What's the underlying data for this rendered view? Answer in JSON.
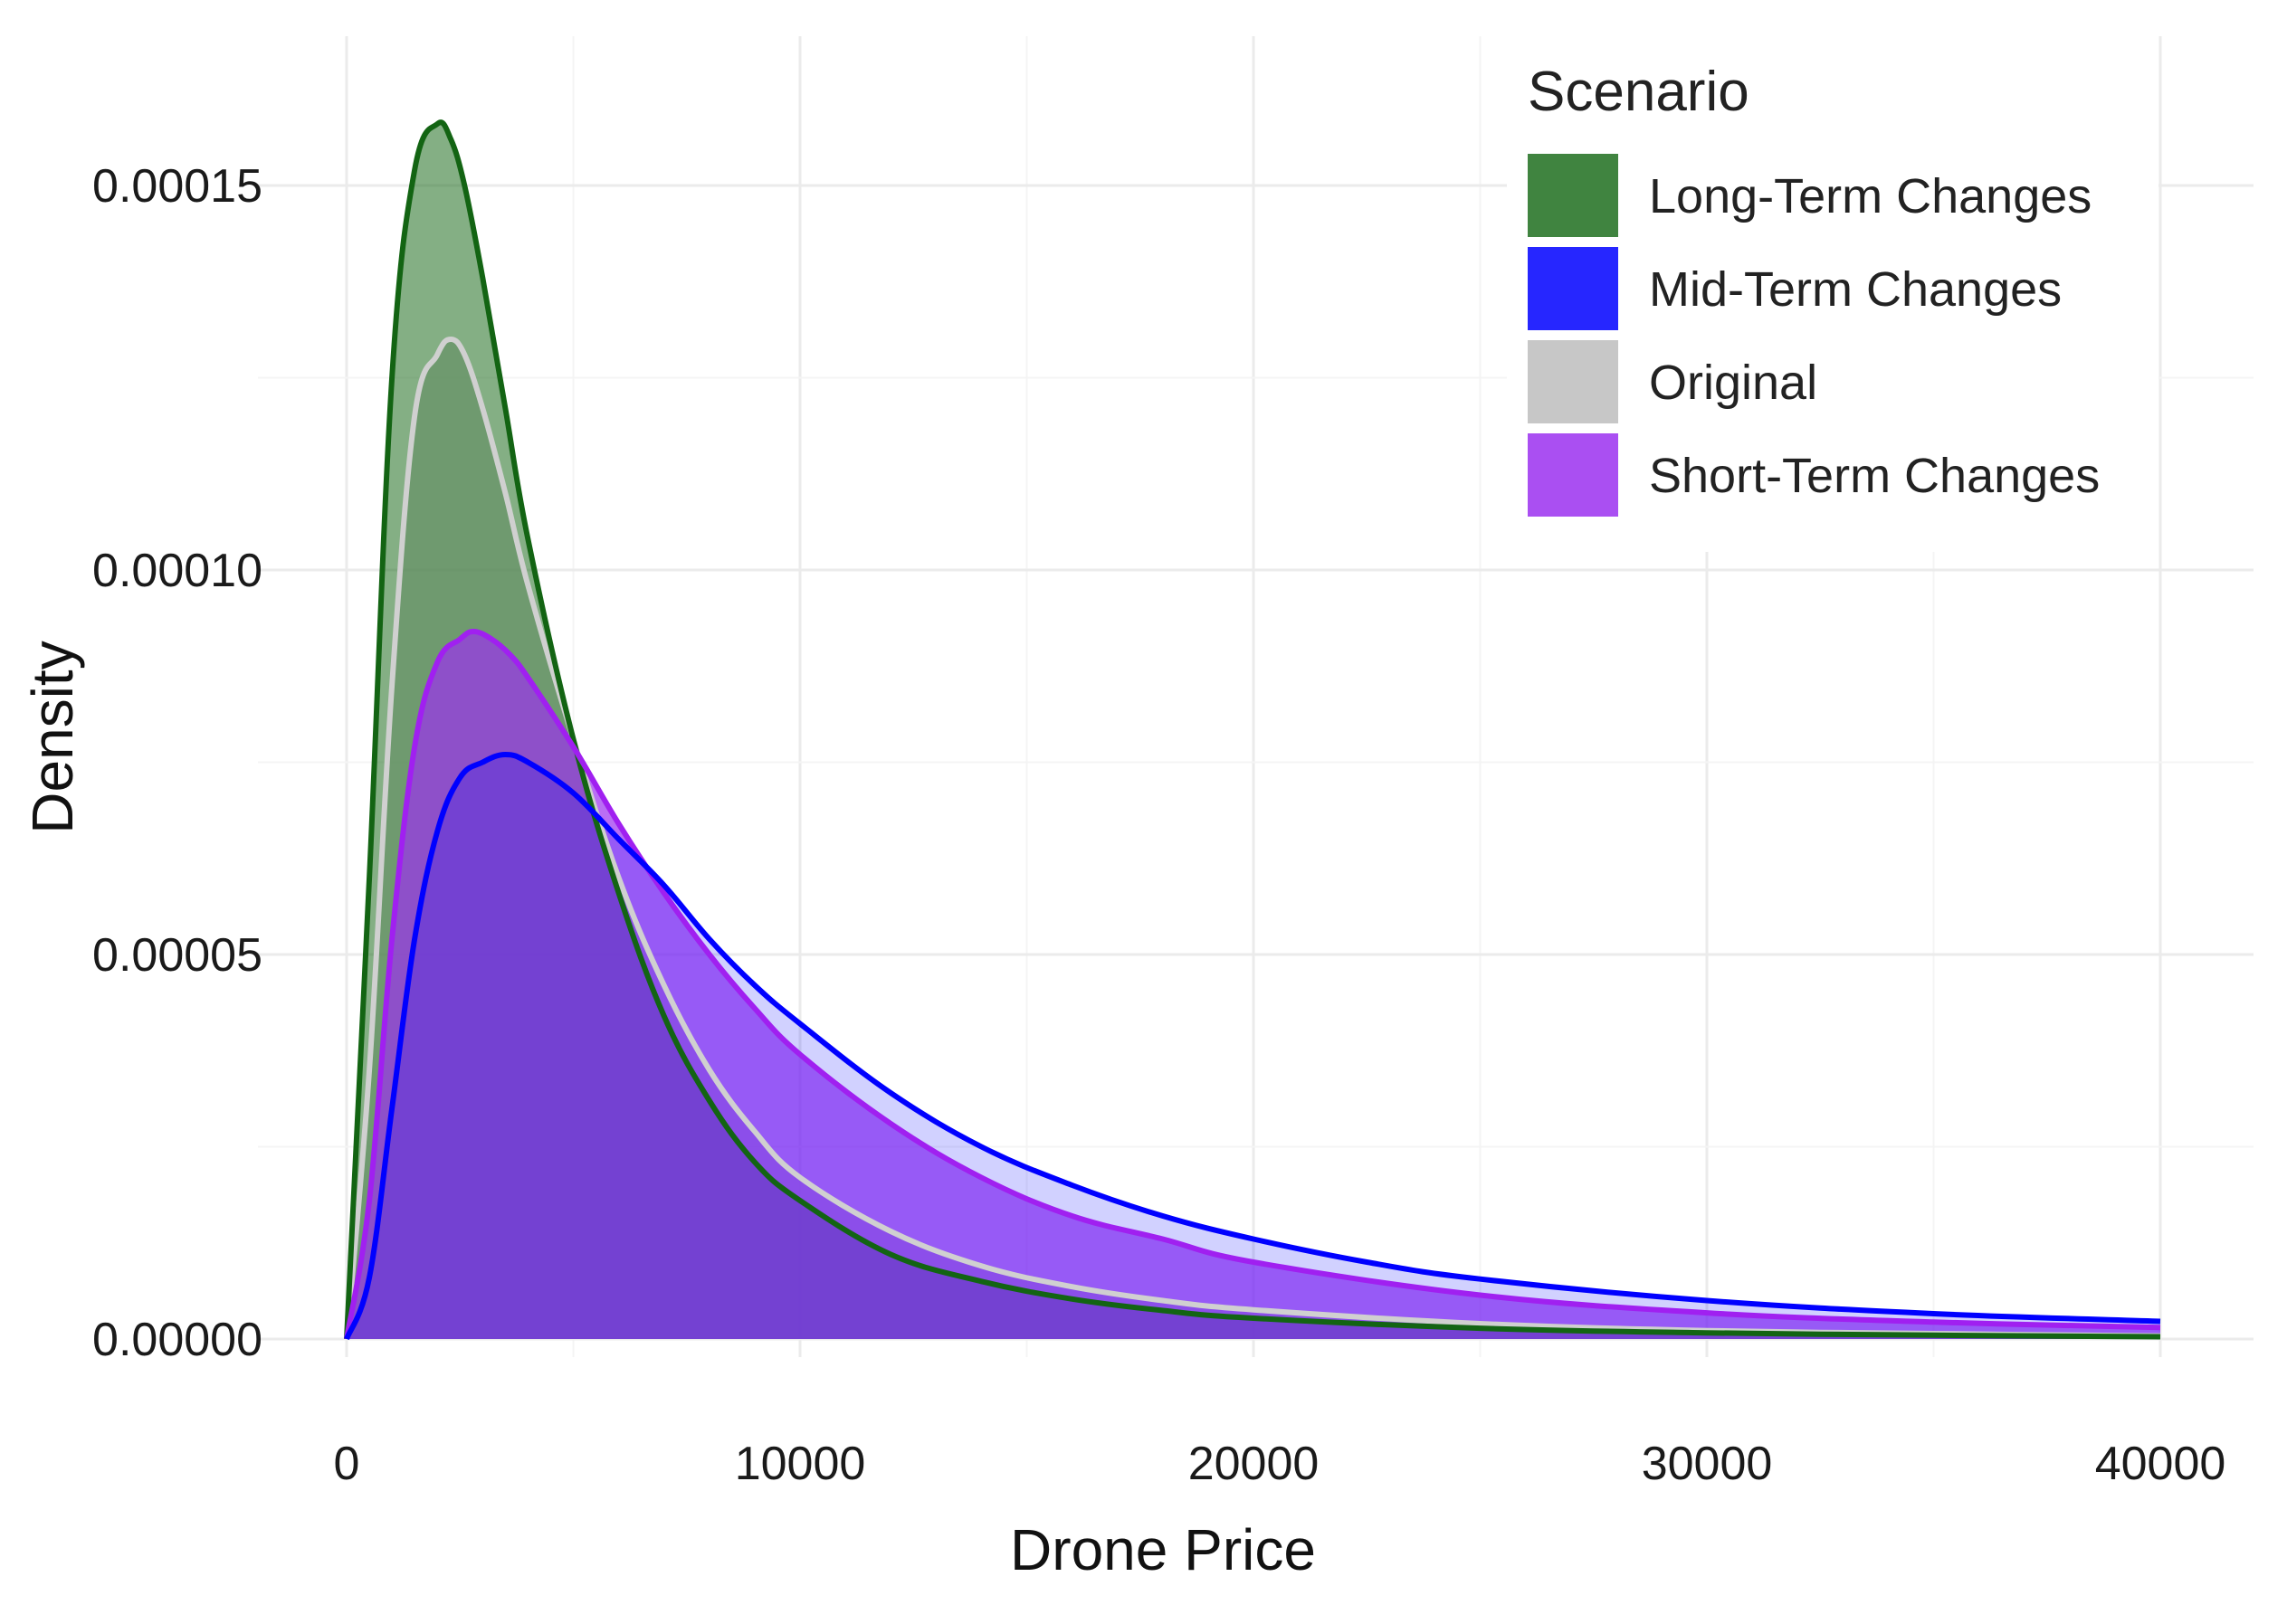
{
  "chart_data": {
    "type": "area",
    "xlabel": "Drone Price",
    "ylabel": "Density",
    "xlim": [
      0,
      40000
    ],
    "ylim": [
      0,
      0.00016
    ],
    "x_ticks": [
      0,
      10000,
      20000,
      30000,
      40000
    ],
    "x_tick_labels": [
      "0",
      "10000",
      "20000",
      "30000",
      "40000"
    ],
    "y_ticks": [
      0,
      5e-05,
      0.0001,
      0.00015
    ],
    "y_tick_labels": [
      "0.00000",
      "0.00005",
      "0.00010",
      "0.00015"
    ],
    "grid": true,
    "legend": {
      "title": "Scenario",
      "position": "top-right"
    },
    "series": [
      {
        "name": "Original",
        "color": "#bdbdbd",
        "line_color": "#d0d0d0",
        "fill_opacity": 0.7,
        "x": [
          0,
          500,
          1000,
          1500,
          2000,
          2300,
          2600,
          3000,
          3500,
          4000,
          5000,
          6000,
          7000,
          8000,
          9000,
          10000,
          12000,
          14000,
          16000,
          18000,
          20000,
          25000,
          30000,
          35000,
          40000
        ],
        "y": [
          0,
          3.5e-05,
          8.5e-05,
          0.00012,
          0.000128,
          0.00013,
          0.000128,
          0.000121,
          0.00011,
          9.8e-05,
          7.8e-05,
          6e-05,
          4.6e-05,
          3.5e-05,
          2.7e-05,
          2.1e-05,
          1.4e-05,
          9.5e-06,
          6.8e-06,
          5e-06,
          3.8e-06,
          2e-06,
          1.1e-06,
          7e-07,
          4e-07
        ]
      },
      {
        "name": "Long-Term Changes",
        "color": "#1f6e1f",
        "line_color": "#136413",
        "fill_opacity": 0.55,
        "x": [
          0,
          500,
          1000,
          1500,
          2000,
          2300,
          2600,
          3000,
          3500,
          4000,
          5000,
          6000,
          7000,
          8000,
          9000,
          10000,
          12000,
          14000,
          16000,
          18000,
          20000,
          25000,
          30000,
          35000,
          40000
        ],
        "y": [
          0,
          6e-05,
          0.000125,
          0.000152,
          0.000158,
          0.000156,
          0.00015,
          0.000138,
          0.000121,
          0.000104,
          7.8e-05,
          5.8e-05,
          4.2e-05,
          3.1e-05,
          2.3e-05,
          1.8e-05,
          1.1e-05,
          7.5e-06,
          5.2e-06,
          3.7e-06,
          2.7e-06,
          1.4e-06,
          8e-07,
          5e-07,
          3e-07
        ]
      },
      {
        "name": "Short-Term Changes",
        "color": "#9b30f0",
        "line_color": "#a020f0",
        "fill_opacity": 0.7,
        "x": [
          0,
          500,
          1000,
          1500,
          2000,
          2500,
          2800,
          3200,
          3600,
          4000,
          5000,
          6000,
          7000,
          8000,
          9000,
          10000,
          12000,
          14000,
          16000,
          18000,
          20000,
          25000,
          30000,
          35000,
          40000
        ],
        "y": [
          0,
          1.8e-05,
          5.2e-05,
          7.7e-05,
          8.8e-05,
          9.1e-05,
          9.2e-05,
          9.1e-05,
          8.9e-05,
          8.6e-05,
          7.7e-05,
          6.7e-05,
          5.8e-05,
          5e-05,
          4.3e-05,
          3.7e-05,
          2.8e-05,
          2.1e-05,
          1.6e-05,
          1.3e-05,
          1e-05,
          5.7e-06,
          3.4e-06,
          2.2e-06,
          1.5e-06
        ]
      },
      {
        "name": "Mid-Term Changes",
        "color": "#0000ff",
        "line_color": "#0000ff",
        "fill_opacity": 0.18,
        "x": [
          0,
          500,
          1000,
          1500,
          2000,
          2500,
          3000,
          3500,
          4000,
          5000,
          6000,
          7000,
          8000,
          9000,
          10000,
          12000,
          14000,
          16000,
          18000,
          20000,
          22500,
          25000,
          30000,
          35000,
          40000
        ],
        "y": [
          0,
          8e-06,
          3e-05,
          5.2e-05,
          6.6e-05,
          7.3e-05,
          7.5e-05,
          7.6e-05,
          7.5e-05,
          7.1e-05,
          6.5e-05,
          5.9e-05,
          5.2e-05,
          4.6e-05,
          4.1e-05,
          3.2e-05,
          2.5e-05,
          2e-05,
          1.6e-05,
          1.3e-05,
          1e-05,
          7.8e-06,
          5e-06,
          3.3e-06,
          2.3e-06
        ]
      }
    ],
    "legend_order": [
      "Long-Term Changes",
      "Mid-Term Changes",
      "Original",
      "Short-Term Changes"
    ]
  },
  "colors": {
    "background": "#ffffff",
    "grid_major": "#ebebeb",
    "grid_minor": "#f4f4f4",
    "overlap_fill": "#7a55d6"
  }
}
